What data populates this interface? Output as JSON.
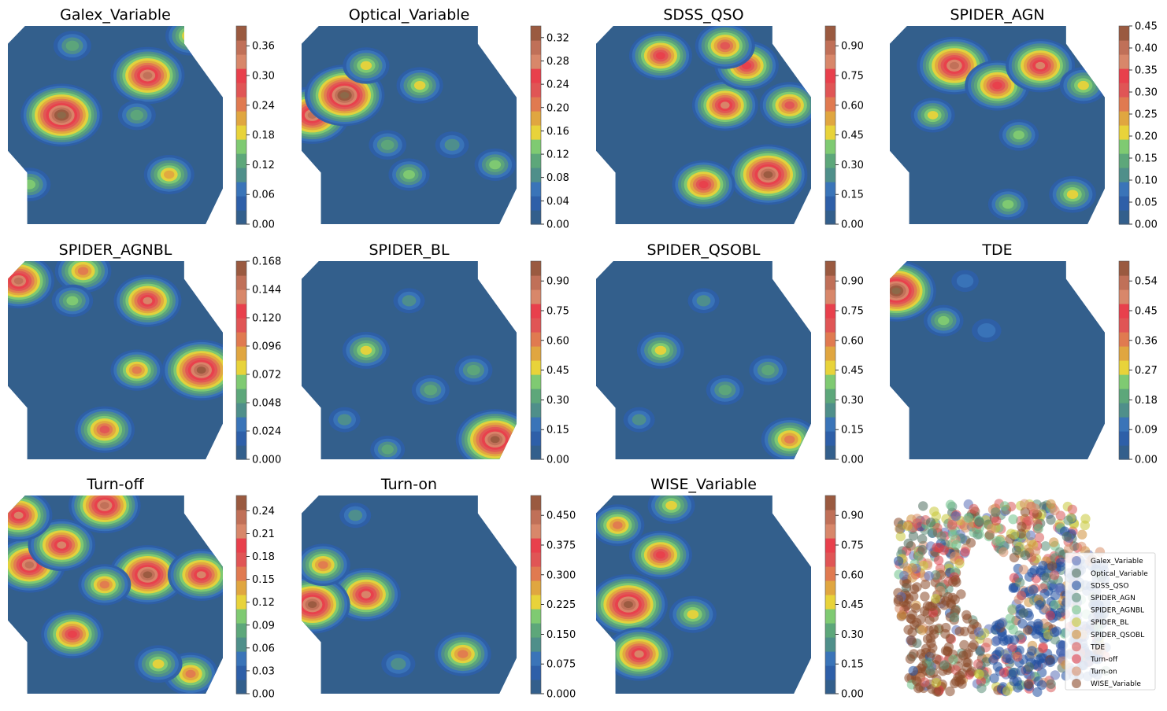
{
  "figure": {
    "palette": [
      "#335f8c",
      "#2e5fa8",
      "#3a74b8",
      "#4f8f8a",
      "#5da77a",
      "#7fca72",
      "#e8d33a",
      "#e0a640",
      "#e07a50",
      "#e05555",
      "#e8404c",
      "#d8876a",
      "#c07058",
      "#9a5a40",
      "#8b6a4a"
    ]
  },
  "chart_data": [
    {
      "type": "heatmap",
      "title": "Galex_Variable",
      "colorbar_ticks": [
        "0.00",
        "0.06",
        "0.12",
        "0.18",
        "0.24",
        "0.30",
        "0.36"
      ],
      "vmax": 0.4,
      "hotspots": [
        [
          0.65,
          0.25,
          0.35
        ],
        [
          0.75,
          0.75,
          0.2
        ],
        [
          0.6,
          0.45,
          0.12
        ],
        [
          0.85,
          0.05,
          0.2
        ],
        [
          0.3,
          0.1,
          0.12
        ],
        [
          0.25,
          0.45,
          0.4
        ],
        [
          0.1,
          0.8,
          0.15
        ]
      ]
    },
    {
      "type": "heatmap",
      "title": "Optical_Variable",
      "colorbar_ticks": [
        "0.00",
        "0.04",
        "0.08",
        "0.12",
        "0.16",
        "0.20",
        "0.24",
        "0.28",
        "0.32"
      ],
      "vmax": 0.34,
      "hotspots": [
        [
          0.05,
          0.45,
          0.3
        ],
        [
          0.2,
          0.35,
          0.33
        ],
        [
          0.3,
          0.2,
          0.15
        ],
        [
          0.4,
          0.6,
          0.1
        ],
        [
          0.5,
          0.75,
          0.12
        ],
        [
          0.7,
          0.6,
          0.08
        ],
        [
          0.55,
          0.3,
          0.15
        ],
        [
          0.9,
          0.7,
          0.12
        ]
      ]
    },
    {
      "type": "heatmap",
      "title": "SDSS_QSO",
      "colorbar_ticks": [
        "0.00",
        "0.15",
        "0.30",
        "0.45",
        "0.60",
        "0.75",
        "0.90"
      ],
      "vmax": 1.0,
      "hotspots": [
        [
          0.8,
          0.75,
          0.95
        ],
        [
          0.6,
          0.4,
          0.75
        ],
        [
          0.3,
          0.15,
          0.7
        ],
        [
          0.7,
          0.2,
          0.72
        ],
        [
          0.9,
          0.4,
          0.65
        ],
        [
          0.5,
          0.8,
          0.7
        ],
        [
          0.6,
          0.1,
          0.65
        ]
      ]
    },
    {
      "type": "heatmap",
      "title": "SPIDER_AGN",
      "colorbar_ticks": [
        "0.00",
        "0.05",
        "0.10",
        "0.15",
        "0.20",
        "0.25",
        "0.30",
        "0.35",
        "0.40",
        "0.45"
      ],
      "vmax": 0.45,
      "hotspots": [
        [
          0.3,
          0.2,
          0.4
        ],
        [
          0.5,
          0.3,
          0.33
        ],
        [
          0.7,
          0.2,
          0.36
        ],
        [
          0.2,
          0.45,
          0.18
        ],
        [
          0.6,
          0.55,
          0.15
        ],
        [
          0.9,
          0.3,
          0.2
        ],
        [
          0.55,
          0.9,
          0.15
        ],
        [
          0.85,
          0.85,
          0.2
        ]
      ]
    },
    {
      "type": "heatmap",
      "title": "SPIDER_AGNBL",
      "colorbar_ticks": [
        "0.000",
        "0.024",
        "0.048",
        "0.072",
        "0.096",
        "0.120",
        "0.144",
        "0.168"
      ],
      "vmax": 0.168,
      "hotspots": [
        [
          0.9,
          0.55,
          0.16
        ],
        [
          0.65,
          0.2,
          0.13
        ],
        [
          0.35,
          0.05,
          0.1
        ],
        [
          0.6,
          0.55,
          0.09
        ],
        [
          0.45,
          0.85,
          0.11
        ],
        [
          0.05,
          0.1,
          0.14
        ],
        [
          0.3,
          0.2,
          0.06
        ]
      ]
    },
    {
      "type": "heatmap",
      "title": "SPIDER_BL",
      "colorbar_ticks": [
        "0.00",
        "0.15",
        "0.30",
        "0.45",
        "0.60",
        "0.75",
        "0.90"
      ],
      "vmax": 1.0,
      "hotspots": [
        [
          0.9,
          0.9,
          0.95
        ],
        [
          0.3,
          0.45,
          0.45
        ],
        [
          0.5,
          0.2,
          0.2
        ],
        [
          0.6,
          0.65,
          0.3
        ],
        [
          0.8,
          0.55,
          0.3
        ],
        [
          0.2,
          0.8,
          0.2
        ],
        [
          0.4,
          0.95,
          0.25
        ]
      ]
    },
    {
      "type": "heatmap",
      "title": "SPIDER_QSOBL",
      "colorbar_ticks": [
        "0.00",
        "0.15",
        "0.30",
        "0.45",
        "0.60",
        "0.75",
        "0.90"
      ],
      "vmax": 1.0,
      "hotspots": [
        [
          0.9,
          0.9,
          0.6
        ],
        [
          0.3,
          0.45,
          0.45
        ],
        [
          0.5,
          0.2,
          0.2
        ],
        [
          0.6,
          0.65,
          0.3
        ],
        [
          0.8,
          0.55,
          0.3
        ],
        [
          0.2,
          0.8,
          0.2
        ]
      ]
    },
    {
      "type": "heatmap",
      "title": "TDE",
      "colorbar_ticks": [
        "0.00",
        "0.09",
        "0.18",
        "0.27",
        "0.36",
        "0.45",
        "0.54"
      ],
      "vmax": 0.6,
      "hotspots": [
        [
          0.03,
          0.15,
          0.58
        ],
        [
          0.25,
          0.3,
          0.2
        ],
        [
          0.35,
          0.1,
          0.08
        ],
        [
          0.45,
          0.35,
          0.1
        ]
      ]
    },
    {
      "type": "heatmap",
      "title": "Turn-off",
      "colorbar_ticks": [
        "0.00",
        "0.03",
        "0.06",
        "0.09",
        "0.12",
        "0.15",
        "0.18",
        "0.21",
        "0.24"
      ],
      "vmax": 0.26,
      "hotspots": [
        [
          0.1,
          0.35,
          0.22
        ],
        [
          0.25,
          0.25,
          0.2
        ],
        [
          0.45,
          0.05,
          0.22
        ],
        [
          0.65,
          0.4,
          0.24
        ],
        [
          0.9,
          0.4,
          0.2
        ],
        [
          0.3,
          0.7,
          0.18
        ],
        [
          0.85,
          0.9,
          0.15
        ],
        [
          0.7,
          0.85,
          0.12
        ],
        [
          0.05,
          0.1,
          0.2
        ],
        [
          0.45,
          0.45,
          0.14
        ]
      ]
    },
    {
      "type": "heatmap",
      "title": "Turn-on",
      "colorbar_ticks": [
        "0.000",
        "0.075",
        "0.150",
        "0.225",
        "0.300",
        "0.375",
        "0.450"
      ],
      "vmax": 0.5,
      "hotspots": [
        [
          0.3,
          0.5,
          0.4
        ],
        [
          0.05,
          0.55,
          0.45
        ],
        [
          0.75,
          0.8,
          0.3
        ],
        [
          0.1,
          0.35,
          0.28
        ],
        [
          0.45,
          0.85,
          0.12
        ],
        [
          0.25,
          0.1,
          0.1
        ]
      ]
    },
    {
      "type": "heatmap",
      "title": "WISE_Variable",
      "colorbar_ticks": [
        "0.00",
        "0.15",
        "0.30",
        "0.45",
        "0.60",
        "0.75",
        "0.90"
      ],
      "vmax": 1.0,
      "hotspots": [
        [
          0.15,
          0.55,
          0.95
        ],
        [
          0.3,
          0.3,
          0.7
        ],
        [
          0.2,
          0.8,
          0.8
        ],
        [
          0.45,
          0.6,
          0.45
        ],
        [
          0.1,
          0.15,
          0.55
        ],
        [
          0.35,
          0.05,
          0.45
        ]
      ]
    },
    {
      "type": "scatter",
      "title": "",
      "legend_position": "lower-right",
      "series": [
        {
          "name": "Galex_Variable",
          "color": "#5b6fb8"
        },
        {
          "name": "Optical_Variable",
          "color": "#4f6e5e"
        },
        {
          "name": "SDSS_QSO",
          "color": "#1f4fa0"
        },
        {
          "name": "SPIDER_AGN",
          "color": "#5b8f78"
        },
        {
          "name": "SPIDER_AGNBL",
          "color": "#6fc28a"
        },
        {
          "name": "SPIDER_BL",
          "color": "#c8c83a"
        },
        {
          "name": "SPIDER_QSOBL",
          "color": "#d0903a"
        },
        {
          "name": "TDE",
          "color": "#d85a5a"
        },
        {
          "name": "Turn-off",
          "color": "#e0404c"
        },
        {
          "name": "Turn-on",
          "color": "#d8906a"
        },
        {
          "name": "WISE_Variable",
          "color": "#8b4a2a"
        }
      ]
    }
  ]
}
